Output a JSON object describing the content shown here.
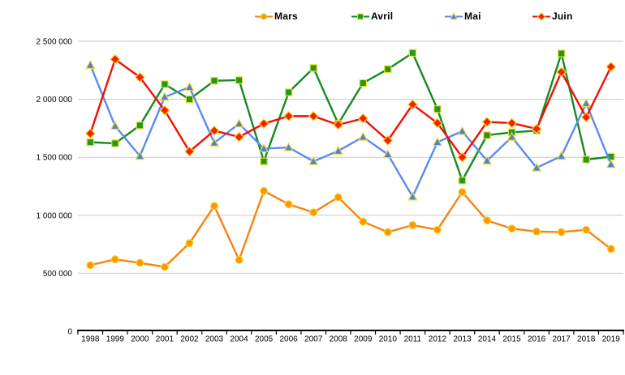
{
  "page": {
    "background": "#ffffff"
  },
  "chart_data": {
    "type": "line",
    "title": "",
    "xlabel": "",
    "ylabel": "",
    "legend_position": "top",
    "grid": true,
    "x": [
      1998,
      1999,
      2000,
      2001,
      2002,
      2003,
      2004,
      2005,
      2006,
      2007,
      2008,
      2009,
      2010,
      2011,
      2012,
      2013,
      2014,
      2015,
      2016,
      2017,
      2018,
      2019
    ],
    "series": [
      {
        "name": "Mars",
        "marker": "circle",
        "color": "#f8830f",
        "marker_fill": "#ff940a",
        "values": [
          570000,
          620000,
          590000,
          555000,
          760000,
          1080000,
          615000,
          1210000,
          1095000,
          1025000,
          1155000,
          945000,
          855000,
          915000,
          875000,
          1200000,
          955000,
          885000,
          860000,
          855000,
          875000,
          710000
        ]
      },
      {
        "name": "Avril",
        "marker": "square",
        "color": "#178a1d",
        "marker_fill": "#23971f",
        "values": [
          1630000,
          1620000,
          1775000,
          2130000,
          2000000,
          2160000,
          2165000,
          1465000,
          2060000,
          2270000,
          1790000,
          2140000,
          2260000,
          2400000,
          1915000,
          1300000,
          1690000,
          1715000,
          1730000,
          2395000,
          1480000,
          1505000
        ]
      },
      {
        "name": "Mai",
        "marker": "triangle",
        "color": "#5b8bee",
        "marker_fill": "#4d7fe3",
        "values": [
          2295000,
          1770000,
          1510000,
          2020000,
          2105000,
          1625000,
          1790000,
          1575000,
          1585000,
          1465000,
          1555000,
          1675000,
          1525000,
          1160000,
          1630000,
          1725000,
          1470000,
          1675000,
          1410000,
          1510000,
          1965000,
          1440000
        ]
      },
      {
        "name": "Juin",
        "marker": "diamond",
        "color": "#f60d00",
        "marker_fill": "#fb1f02",
        "values": [
          1705000,
          2345000,
          2190000,
          1905000,
          1550000,
          1730000,
          1675000,
          1790000,
          1855000,
          1855000,
          1780000,
          1835000,
          1645000,
          1955000,
          1795000,
          1500000,
          1805000,
          1795000,
          1745000,
          2235000,
          1845000,
          2280000
        ]
      }
    ],
    "ylim": [
      0,
      2500000
    ],
    "ytick_step": 500000,
    "ytick_labels": [
      "0",
      "500 000",
      "1 000 000",
      "1 500 000",
      "2 000 000",
      "2 500 000"
    ],
    "colors": {
      "gridline": "#c9c9c9",
      "axis": "#000000",
      "text": "#000000",
      "marker_outline": "#ecdc2a"
    }
  }
}
